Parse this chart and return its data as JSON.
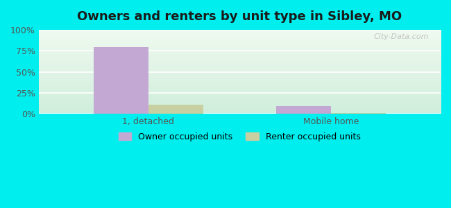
{
  "title": "Owners and renters by unit type in Sibley, MO",
  "categories": [
    "1, detached",
    "Mobile home"
  ],
  "owner_values": [
    79,
    9
  ],
  "renter_values": [
    11,
    1
  ],
  "owner_color": "#c4a8d4",
  "renter_color": "#c8cfa0",
  "ylim": [
    0,
    100
  ],
  "yticks": [
    0,
    25,
    50,
    75,
    100
  ],
  "ytick_labels": [
    "0%",
    "25%",
    "50%",
    "75%",
    "100%"
  ],
  "bar_width": 0.3,
  "outer_bg": "#00eeee",
  "plot_bg_top": "#f0faf0",
  "plot_bg_bottom": "#d8f0e0",
  "legend_owner": "Owner occupied units",
  "legend_renter": "Renter occupied units",
  "watermark": "City-Data.com",
  "grid_color": "#ffffff"
}
